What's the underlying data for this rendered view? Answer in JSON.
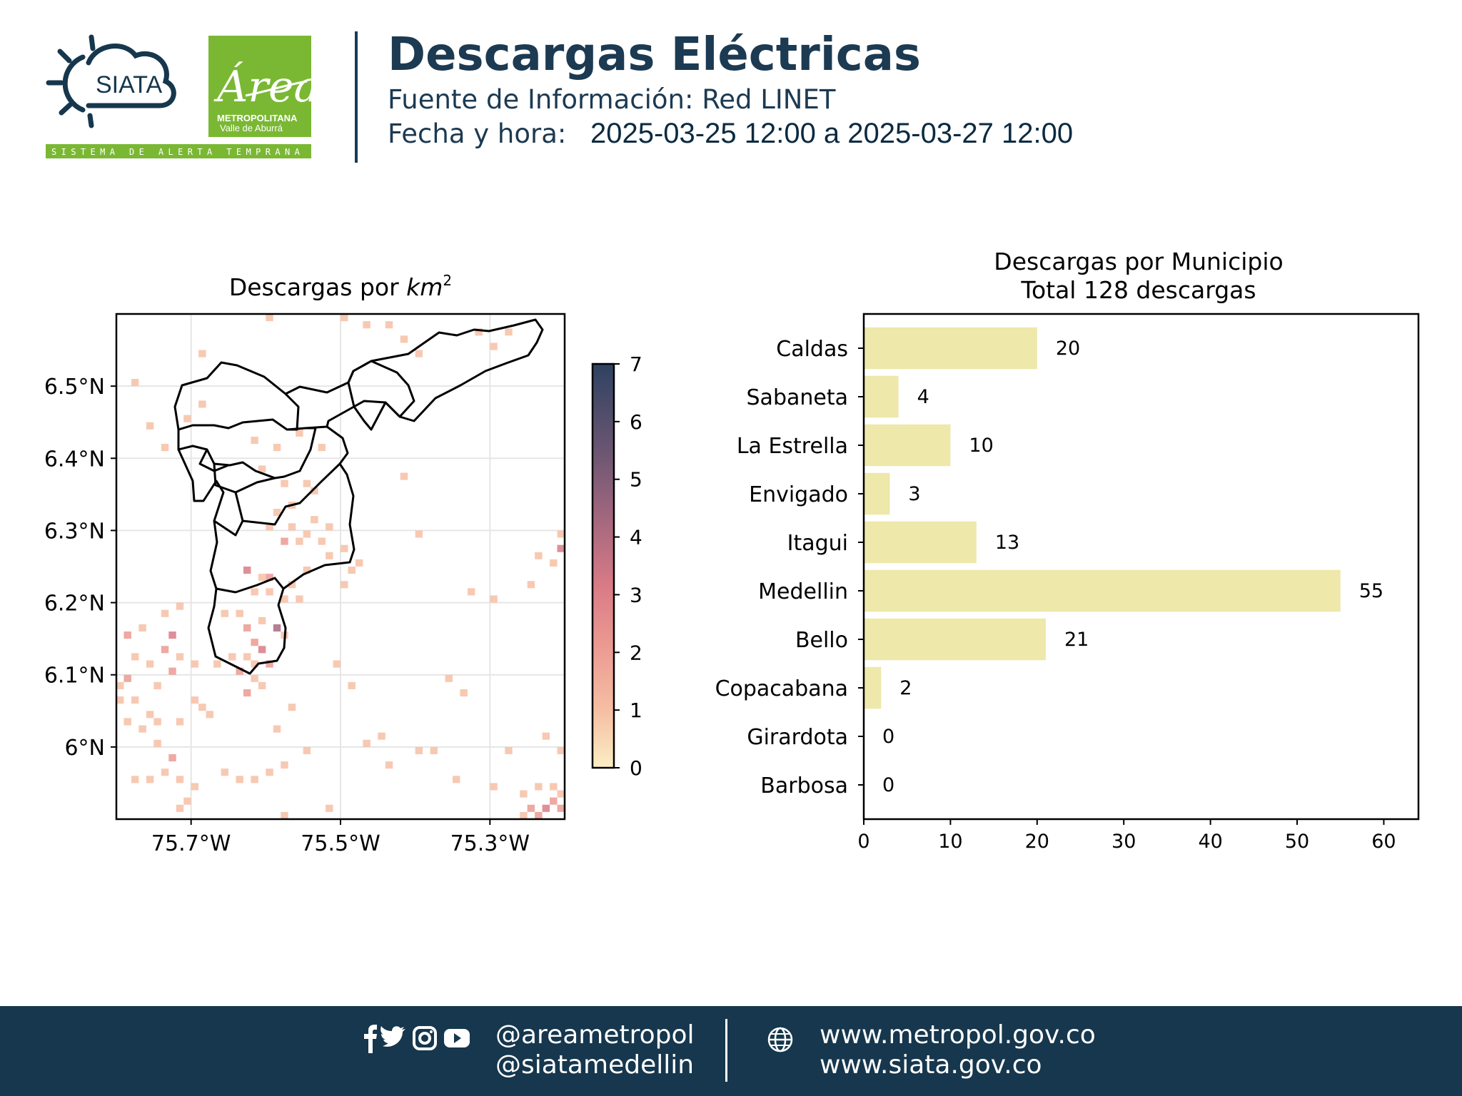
{
  "header": {
    "logo_siata_text": "SIATA",
    "logo_area_text": "Área",
    "logo_area_sub1": "METROPOLITANA",
    "logo_area_sub2": "Valle de Aburrá",
    "logo_tagline": "SISTEMA DE ALERTA TEMPRANA",
    "title": "Descargas Eléctricas",
    "source": "Fuente de Información: Red LINET",
    "datetime_label": "Fecha y hora:",
    "datetime_value": "2025-03-25 12:00 a 2025-03-27 12:00"
  },
  "colors": {
    "brand_navy": "#16374d",
    "brand_green": "#7ab833",
    "bar_fill": "#eee8aa",
    "colormap_low": "#fbeec4",
    "colormap_mid": "#df7f86",
    "colormap_high": "#2e4261"
  },
  "chart_data": [
    {
      "type": "heatmap",
      "title": "Descargas por km²",
      "title_text": "Descargas por ",
      "title_unit": "km",
      "title_exp": "2",
      "x_ticks": [
        "75.7°W",
        "75.5°W",
        "75.3°W"
      ],
      "x_tick_values": [
        -75.7,
        -75.5,
        -75.3
      ],
      "y_ticks": [
        "6.5°N",
        "6.4°N",
        "6.3°N",
        "6.2°N",
        "6.1°N",
        "6°N"
      ],
      "y_tick_values": [
        6.5,
        6.4,
        6.3,
        6.2,
        6.1,
        6.0
      ],
      "xlim": [
        -75.8,
        -75.2
      ],
      "ylim": [
        5.9,
        6.6
      ],
      "grid": true,
      "colorbar": {
        "min": 0,
        "max": 7,
        "ticks": [
          "0",
          "1",
          "2",
          "3",
          "4",
          "5",
          "6",
          "7"
        ]
      },
      "cell_deg": 0.01,
      "cells": [
        [
          -75.78,
          6.51,
          1
        ],
        [
          -75.76,
          6.45,
          1
        ],
        [
          -75.74,
          6.42,
          1
        ],
        [
          -75.71,
          6.46,
          1
        ],
        [
          -75.69,
          6.55,
          1
        ],
        [
          -75.69,
          6.48,
          1
        ],
        [
          -75.62,
          6.43,
          1
        ],
        [
          -75.61,
          6.39,
          1
        ],
        [
          -75.59,
          6.42,
          1
        ],
        [
          -75.58,
          6.37,
          1
        ],
        [
          -75.56,
          6.44,
          1
        ],
        [
          -75.55,
          6.37,
          1
        ],
        [
          -75.54,
          6.36,
          1
        ],
        [
          -75.57,
          6.34,
          1
        ],
        [
          -75.59,
          6.33,
          1
        ],
        [
          -75.6,
          6.31,
          1
        ],
        [
          -75.57,
          6.31,
          1
        ],
        [
          -75.58,
          6.29,
          2
        ],
        [
          -75.56,
          6.29,
          1
        ],
        [
          -75.55,
          6.3,
          1
        ],
        [
          -75.54,
          6.32,
          1
        ],
        [
          -75.53,
          6.29,
          1
        ],
        [
          -75.52,
          6.31,
          1
        ],
        [
          -75.5,
          6.28,
          1
        ],
        [
          -75.49,
          6.25,
          1
        ],
        [
          -75.5,
          6.23,
          1
        ],
        [
          -75.48,
          6.26,
          1
        ],
        [
          -75.52,
          6.27,
          1
        ],
        [
          -75.63,
          6.25,
          3
        ],
        [
          -75.61,
          6.24,
          1
        ],
        [
          -75.6,
          6.24,
          2
        ],
        [
          -75.62,
          6.22,
          1
        ],
        [
          -75.6,
          6.22,
          1
        ],
        [
          -75.58,
          6.21,
          1
        ],
        [
          -75.56,
          6.21,
          1
        ],
        [
          -75.57,
          6.23,
          1
        ],
        [
          -75.55,
          6.25,
          1
        ],
        [
          -75.66,
          6.19,
          1
        ],
        [
          -75.64,
          6.19,
          1
        ],
        [
          -75.63,
          6.17,
          2
        ],
        [
          -75.61,
          6.18,
          1
        ],
        [
          -75.59,
          6.17,
          4
        ],
        [
          -75.58,
          6.16,
          1
        ],
        [
          -75.62,
          6.15,
          2
        ],
        [
          -75.61,
          6.14,
          3
        ],
        [
          -75.63,
          6.13,
          1
        ],
        [
          -75.62,
          6.12,
          1
        ],
        [
          -75.6,
          6.12,
          2
        ],
        [
          -75.64,
          6.11,
          2
        ],
        [
          -75.62,
          6.1,
          1
        ],
        [
          -75.61,
          6.09,
          1
        ],
        [
          -75.63,
          6.08,
          2
        ],
        [
          -75.65,
          6.13,
          1
        ],
        [
          -75.67,
          6.12,
          1
        ],
        [
          -75.7,
          6.12,
          1
        ],
        [
          -75.72,
          6.13,
          1
        ],
        [
          -75.73,
          6.16,
          3
        ],
        [
          -75.74,
          6.14,
          2
        ],
        [
          -75.73,
          6.11,
          2
        ],
        [
          -75.75,
          6.09,
          1
        ],
        [
          -75.76,
          6.12,
          1
        ],
        [
          -75.78,
          6.13,
          1
        ],
        [
          -75.79,
          6.16,
          2
        ],
        [
          -75.77,
          6.17,
          1
        ],
        [
          -75.74,
          6.19,
          1
        ],
        [
          -75.72,
          6.2,
          1
        ],
        [
          -75.7,
          6.07,
          1
        ],
        [
          -75.69,
          6.06,
          1
        ],
        [
          -75.68,
          6.05,
          1
        ],
        [
          -75.72,
          6.04,
          1
        ],
        [
          -75.75,
          6.04,
          1
        ],
        [
          -75.77,
          6.03,
          1
        ],
        [
          -75.79,
          6.04,
          1
        ],
        [
          -75.8,
          6.07,
          1
        ],
        [
          -75.78,
          6.07,
          1
        ],
        [
          -75.76,
          6.05,
          1
        ],
        [
          -75.75,
          6.01,
          1
        ],
        [
          -75.73,
          5.99,
          2
        ],
        [
          -75.74,
          5.97,
          1
        ],
        [
          -75.76,
          5.96,
          1
        ],
        [
          -75.78,
          5.96,
          1
        ],
        [
          -75.72,
          5.96,
          1
        ],
        [
          -75.7,
          5.95,
          1
        ],
        [
          -75.71,
          5.93,
          1
        ],
        [
          -75.72,
          5.92,
          1
        ],
        [
          -75.66,
          5.97,
          1
        ],
        [
          -75.64,
          5.96,
          1
        ],
        [
          -75.62,
          5.96,
          1
        ],
        [
          -75.6,
          5.97,
          1
        ],
        [
          -75.58,
          5.98,
          1
        ],
        [
          -75.59,
          6.03,
          1
        ],
        [
          -75.57,
          6.06,
          1
        ],
        [
          -75.55,
          6.0,
          1
        ],
        [
          -75.49,
          6.09,
          1
        ],
        [
          -75.51,
          6.12,
          1
        ],
        [
          -75.47,
          6.01,
          1
        ],
        [
          -75.45,
          6.02,
          1
        ],
        [
          -75.44,
          5.98,
          1
        ],
        [
          -75.36,
          6.1,
          1
        ],
        [
          -75.34,
          6.08,
          1
        ],
        [
          -75.38,
          6.0,
          1
        ],
        [
          -75.4,
          6.0,
          1
        ],
        [
          -75.35,
          5.96,
          1
        ],
        [
          -75.3,
          5.95,
          1
        ],
        [
          -75.28,
          6.0,
          1
        ],
        [
          -75.26,
          5.94,
          1
        ],
        [
          -75.24,
          5.95,
          1
        ],
        [
          -75.25,
          5.92,
          2
        ],
        [
          -75.24,
          5.91,
          2
        ],
        [
          -75.23,
          5.92,
          3
        ],
        [
          -75.22,
          5.93,
          2
        ],
        [
          -75.21,
          5.92,
          2
        ],
        [
          -75.21,
          5.94,
          1
        ],
        [
          -75.22,
          5.95,
          1
        ],
        [
          -75.26,
          5.91,
          1
        ],
        [
          -75.23,
          5.9,
          1
        ],
        [
          -75.2,
          5.91,
          1
        ],
        [
          -75.23,
          6.02,
          1
        ],
        [
          -75.21,
          6.0,
          1
        ],
        [
          -75.25,
          6.23,
          1
        ],
        [
          -75.22,
          6.26,
          1
        ],
        [
          -75.21,
          6.28,
          3
        ],
        [
          -75.2,
          6.27,
          1
        ],
        [
          -75.21,
          6.3,
          1
        ],
        [
          -75.24,
          6.27,
          1
        ],
        [
          -75.2,
          6.22,
          1
        ],
        [
          -75.3,
          6.21,
          1
        ],
        [
          -75.33,
          6.22,
          1
        ],
        [
          -75.4,
          6.3,
          1
        ],
        [
          -75.42,
          6.38,
          1
        ],
        [
          -75.3,
          6.56,
          1
        ],
        [
          -75.32,
          6.58,
          1
        ],
        [
          -75.28,
          6.58,
          1
        ],
        [
          -75.4,
          6.55,
          1
        ],
        [
          -75.42,
          6.57,
          1
        ],
        [
          -75.44,
          6.59,
          1
        ],
        [
          -75.47,
          6.59,
          1
        ],
        [
          -75.5,
          6.6,
          1
        ],
        [
          -75.6,
          6.6,
          1
        ],
        [
          -75.53,
          6.42,
          1
        ],
        [
          -75.58,
          5.91,
          1
        ],
        [
          -75.52,
          5.92,
          1
        ],
        [
          -75.8,
          6.09,
          1
        ],
        [
          -75.79,
          6.1,
          2
        ]
      ]
    },
    {
      "type": "bar",
      "orientation": "horizontal",
      "title_line1": "Descargas por Municipio",
      "title_line2": "Total 128 descargas",
      "categories": [
        "Caldas",
        "Sabaneta",
        "La Estrella",
        "Envigado",
        "Itagui",
        "Medellin",
        "Bello",
        "Copacabana",
        "Girardota",
        "Barbosa"
      ],
      "values": [
        20,
        4,
        10,
        3,
        13,
        55,
        21,
        2,
        0,
        0
      ],
      "data_labels": [
        "20",
        "4",
        "10",
        "3",
        "13",
        "55",
        "21",
        "2",
        "0",
        "0"
      ],
      "xlim": [
        0,
        64
      ],
      "x_ticks": [
        "0",
        "10",
        "20",
        "30",
        "40",
        "50",
        "60"
      ],
      "x_tick_values": [
        0,
        10,
        20,
        30,
        40,
        50,
        60
      ]
    }
  ],
  "footer": {
    "social_icons": [
      "facebook-icon",
      "twitter-icon",
      "instagram-icon",
      "youtube-icon"
    ],
    "handle_1": "@areametropol",
    "handle_2": "@siatamedellin",
    "url_1": "www.metropol.gov.co",
    "url_2": "www.siata.gov.co"
  }
}
